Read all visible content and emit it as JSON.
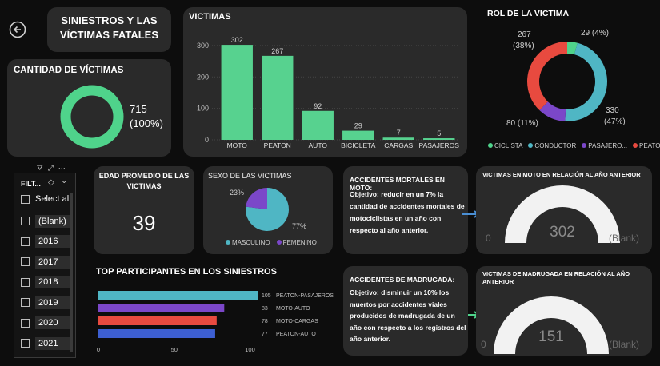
{
  "title": "SINIESTROS Y LAS VÍCTIMAS FATALES",
  "title_line1": "SINIESTROS Y LAS",
  "title_line2": "VÍCTIMAS FATALES",
  "cantidad": {
    "title": "CANTIDAD DE VÍCTIMAS",
    "value": "715",
    "pct": "(100%)"
  },
  "victimas_chart": {
    "title": "VICTIMAS",
    "chart_data": {
      "type": "bar",
      "categories": [
        "MOTO",
        "PEATON",
        "AUTO",
        "BICICLETA",
        "CARGAS",
        "PASAJEROS"
      ],
      "values": [
        302,
        267,
        92,
        29,
        7,
        5
      ],
      "ylim": [
        0,
        320
      ],
      "yticks": [
        "0",
        "100",
        "200",
        "300"
      ],
      "value_labels": [
        "302",
        "267",
        "92",
        "29",
        "7",
        "5"
      ],
      "color": "#57d28f"
    }
  },
  "rol": {
    "title": "ROL DE LA VICTIMA",
    "chart_data": {
      "type": "pie",
      "labels": [
        "CICLISTA",
        "CONDUCTOR",
        "PASAJERO...",
        "PEATON"
      ],
      "values": [
        29,
        330,
        80,
        267
      ],
      "colors": [
        "#4fd38b",
        "#4fb6c4",
        "#7b47c9",
        "#e84a3f"
      ]
    },
    "lbl_ciclista": "29 (4%)",
    "lbl_conductor_1": "330",
    "lbl_conductor_2": "(47%)",
    "lbl_pasajero": "80 (11%)",
    "lbl_peaton_1": "267",
    "lbl_peaton_2": "(38%)"
  },
  "edad": {
    "title_line1": "EDAD PROMEDIO DE LAS",
    "title_line2": "VICTIMAS",
    "value": "39"
  },
  "sexo": {
    "title": "SEXO DE LAS VICTIMAS",
    "chart_data": {
      "type": "pie",
      "labels": [
        "MASCULINO",
        "FEMENINO"
      ],
      "values": [
        77,
        23
      ],
      "colors": [
        "#4fb6c4",
        "#7b47c9"
      ]
    },
    "lbl_fem": "23%",
    "lbl_masc": "77%"
  },
  "moto_obj": {
    "title": "ACCIDENTES MORTALES EN MOTO:",
    "lines": [
      "Objetivo: reducir en un 7% la",
      "cantidad de accidentes mortales de",
      "motociclistas en un año con",
      "respecto al año anterior."
    ]
  },
  "madrugada_obj": {
    "title": "ACCIDENTES DE MADRUGADA:",
    "lines": [
      "Objetivo: disminuir un 10% los",
      "muertos por accidentes viales",
      "producidos de madrugada de un",
      "año con respecto a los registros del",
      "año anterior."
    ]
  },
  "gauge_moto": {
    "title": "VICTIMAS EN MOTO EN RELACIÓN AL AÑO ANTERIOR",
    "value": "302",
    "min": "0",
    "max": "(Blank)"
  },
  "gauge_madrugada": {
    "title_line1": "VICTIMAS DE MADRUGADA EN RELACIÓN AL AÑO",
    "title_line2": "ANTERIOR",
    "value": "151",
    "min": "0",
    "max": "(Blank)"
  },
  "top": {
    "title": "TOP PARTICIPANTES EN LOS SINIESTROS",
    "chart_data": {
      "type": "bar",
      "orientation": "horizontal",
      "categories": [
        "PEATON-PASAJEROS",
        "MOTO-AUTO",
        "MOTO-CARGAS",
        "PEATON-AUTO"
      ],
      "values": [
        105,
        83,
        78,
        77
      ],
      "value_labels": [
        "105",
        "83",
        "78",
        "77"
      ],
      "colors": [
        "#4fb6c4",
        "#7b47c9",
        "#e84a3f",
        "#3d5fd1"
      ],
      "xlim": [
        0,
        105
      ],
      "xticks": [
        "0",
        "50",
        "100"
      ]
    }
  },
  "filter": {
    "title": "FILT...",
    "items": [
      "Select all",
      "(Blank)",
      "2016",
      "2017",
      "2018",
      "2019",
      "2020",
      "2021"
    ]
  }
}
